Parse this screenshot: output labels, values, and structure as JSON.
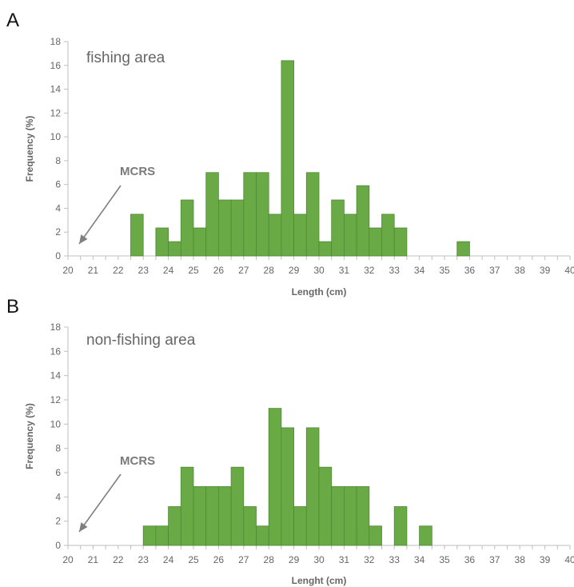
{
  "chart_data": [
    {
      "type": "bar",
      "panel_label": "A",
      "annotation": "fishing area",
      "marker_label": "MCRS",
      "marker_x": 20,
      "xlabel": "Length (cm)",
      "ylabel": "Frequency (%)",
      "xlim": [
        20,
        40
      ],
      "ylim": [
        0,
        18
      ],
      "xticks": [
        20,
        21,
        22,
        23,
        24,
        25,
        26,
        27,
        28,
        29,
        30,
        31,
        32,
        33,
        34,
        35,
        36,
        37,
        38,
        39,
        40
      ],
      "yticks": [
        0,
        2,
        4,
        6,
        8,
        10,
        12,
        14,
        16,
        18
      ],
      "bin_width": 0.5,
      "bars": [
        {
          "x": 22.75,
          "value": 3.5
        },
        {
          "x": 23.75,
          "value": 2.35
        },
        {
          "x": 24.25,
          "value": 1.2
        },
        {
          "x": 24.75,
          "value": 4.7
        },
        {
          "x": 25.25,
          "value": 2.35
        },
        {
          "x": 25.75,
          "value": 7.0
        },
        {
          "x": 26.25,
          "value": 4.7
        },
        {
          "x": 26.75,
          "value": 4.7
        },
        {
          "x": 27.25,
          "value": 7.0
        },
        {
          "x": 27.75,
          "value": 7.0
        },
        {
          "x": 28.25,
          "value": 3.5
        },
        {
          "x": 28.75,
          "value": 16.4
        },
        {
          "x": 29.25,
          "value": 3.5
        },
        {
          "x": 29.75,
          "value": 7.0
        },
        {
          "x": 30.25,
          "value": 1.2
        },
        {
          "x": 30.75,
          "value": 4.7
        },
        {
          "x": 31.25,
          "value": 3.5
        },
        {
          "x": 31.75,
          "value": 5.9
        },
        {
          "x": 32.25,
          "value": 2.35
        },
        {
          "x": 32.75,
          "value": 3.5
        },
        {
          "x": 33.25,
          "value": 2.35
        },
        {
          "x": 35.75,
          "value": 1.2
        }
      ],
      "bar_color": "#6aaa46",
      "bar_edge_color": "#4e8a31"
    },
    {
      "type": "bar",
      "panel_label": "B",
      "annotation": "non-fishing area",
      "marker_label": "MCRS",
      "marker_x": 20,
      "xlabel": "Lenght (cm)",
      "ylabel": "Frequency (%)",
      "xlim": [
        20,
        40
      ],
      "ylim": [
        0,
        18
      ],
      "xticks": [
        20,
        21,
        22,
        23,
        24,
        25,
        26,
        27,
        28,
        29,
        30,
        31,
        32,
        33,
        34,
        35,
        36,
        37,
        38,
        39,
        40
      ],
      "yticks": [
        0,
        2,
        4,
        6,
        8,
        10,
        12,
        14,
        16,
        18
      ],
      "bin_width": 0.5,
      "bars": [
        {
          "x": 23.25,
          "value": 1.6
        },
        {
          "x": 23.75,
          "value": 1.6
        },
        {
          "x": 24.25,
          "value": 3.2
        },
        {
          "x": 24.75,
          "value": 6.45
        },
        {
          "x": 25.25,
          "value": 4.85
        },
        {
          "x": 25.75,
          "value": 4.85
        },
        {
          "x": 26.25,
          "value": 4.85
        },
        {
          "x": 26.75,
          "value": 6.45
        },
        {
          "x": 27.25,
          "value": 3.2
        },
        {
          "x": 27.75,
          "value": 1.6
        },
        {
          "x": 28.25,
          "value": 11.3
        },
        {
          "x": 28.75,
          "value": 9.7
        },
        {
          "x": 29.25,
          "value": 3.2
        },
        {
          "x": 29.75,
          "value": 9.7
        },
        {
          "x": 30.25,
          "value": 6.45
        },
        {
          "x": 30.75,
          "value": 4.85
        },
        {
          "x": 31.25,
          "value": 4.85
        },
        {
          "x": 31.75,
          "value": 4.85
        },
        {
          "x": 32.25,
          "value": 1.6
        },
        {
          "x": 33.25,
          "value": 3.2
        },
        {
          "x": 34.25,
          "value": 1.6
        }
      ],
      "bar_color": "#6aaa46",
      "bar_edge_color": "#4e8a31"
    }
  ]
}
